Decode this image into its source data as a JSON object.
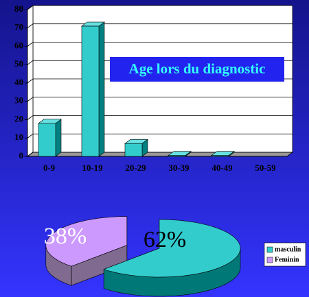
{
  "chart_data": [
    {
      "type": "bar",
      "title": "Age lors du diagnostic",
      "categories": [
        "0-9",
        "10-19",
        "20-29",
        "30-39",
        "40-49",
        "50-59"
      ],
      "values": [
        18,
        71,
        7,
        0.5,
        0.5,
        0
      ],
      "color": "#33cccc",
      "ylim": [
        0,
        80
      ],
      "yticks": [
        0,
        10,
        20,
        30,
        40,
        50,
        60,
        70,
        80
      ],
      "grid": true
    },
    {
      "type": "pie",
      "categories": [
        "masculin",
        "Feminin"
      ],
      "values": [
        62,
        38
      ],
      "value_labels": [
        "62%",
        "38%"
      ],
      "colors": [
        "#33cccc",
        "#cc99ff"
      ],
      "legend": "right"
    }
  ]
}
